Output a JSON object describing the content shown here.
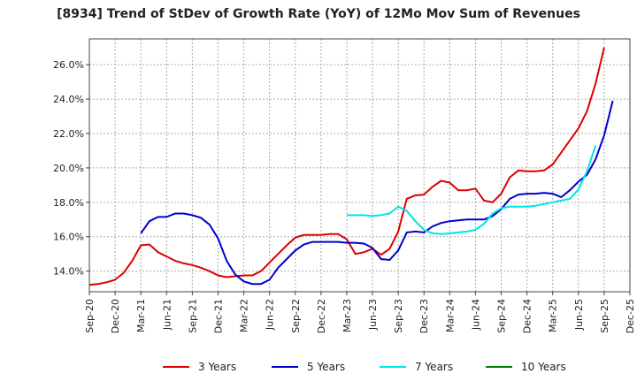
{
  "chart_data": {
    "type": "line",
    "title": "[8934]  Trend of StDev of Growth Rate (YoY) of 12Mo Mov Sum of Revenues",
    "xlabel": "",
    "ylabel": "",
    "ylim": [
      12.8,
      27.5
    ],
    "yticks": [
      14.0,
      16.0,
      18.0,
      20.0,
      22.0,
      24.0,
      26.0
    ],
    "ytick_labels": [
      "14.0%",
      "16.0%",
      "18.0%",
      "20.0%",
      "22.0%",
      "24.0%",
      "26.0%"
    ],
    "xtick_labels": [
      "Sep-20",
      "Dec-20",
      "Mar-21",
      "Jun-21",
      "Sep-21",
      "Dec-21",
      "Mar-22",
      "Jun-22",
      "Sep-22",
      "Dec-22",
      "Mar-23",
      "Jun-23",
      "Sep-23",
      "Dec-23",
      "Mar-24",
      "Jun-24",
      "Sep-24",
      "Dec-24",
      "Mar-25",
      "Jun-25",
      "Sep-25",
      "Dec-25"
    ],
    "x_start": "Sep-20",
    "x_months_total": 63,
    "grid": true,
    "legend_position": "bottom",
    "series": [
      {
        "name": "3 Years",
        "color": "#dd0000",
        "start_month_index": 0,
        "values": [
          13.2,
          13.25,
          13.35,
          13.5,
          13.9,
          14.6,
          15.5,
          15.55,
          15.1,
          14.85,
          14.6,
          14.45,
          14.35,
          14.2,
          14.0,
          13.75,
          13.65,
          13.7,
          13.75,
          13.75,
          14.0,
          14.5,
          15.0,
          15.5,
          15.95,
          16.1,
          16.1,
          16.1,
          16.15,
          16.15,
          15.85,
          15.0,
          15.1,
          15.3,
          14.95,
          15.3,
          16.3,
          18.2,
          18.4,
          18.45,
          18.9,
          19.25,
          19.15,
          18.7,
          18.7,
          18.8,
          18.1,
          18.0,
          18.5,
          19.45,
          19.85,
          19.8,
          19.8,
          19.85,
          20.2,
          20.9,
          21.6,
          22.3,
          23.3,
          24.9,
          27.0
        ]
      },
      {
        "name": "5 Years",
        "color": "#0000cc",
        "start_month_index": 6,
        "values": [
          16.2,
          16.9,
          17.15,
          17.15,
          17.35,
          17.35,
          17.25,
          17.1,
          16.7,
          15.9,
          14.6,
          13.8,
          13.4,
          13.25,
          13.25,
          13.5,
          14.2,
          14.7,
          15.2,
          15.55,
          15.7,
          15.7,
          15.7,
          15.7,
          15.65,
          15.65,
          15.6,
          15.35,
          14.7,
          14.65,
          15.2,
          16.25,
          16.3,
          16.25,
          16.6,
          16.8,
          16.9,
          16.95,
          17.0,
          17.0,
          17.0,
          17.2,
          17.6,
          18.2,
          18.45,
          18.5,
          18.5,
          18.55,
          18.5,
          18.3,
          18.7,
          19.2,
          19.6,
          20.5,
          21.9,
          23.9
        ]
      },
      {
        "name": "7 Years",
        "color": "#00e5e5",
        "start_month_index": 30,
        "values": [
          17.25,
          17.25,
          17.25,
          17.2,
          17.25,
          17.35,
          17.75,
          17.5,
          16.9,
          16.4,
          16.2,
          16.15,
          16.2,
          16.25,
          16.3,
          16.4,
          16.75,
          17.35,
          17.65,
          17.75,
          17.75,
          17.75,
          17.8,
          17.9,
          18.0,
          18.1,
          18.2,
          18.75,
          19.8,
          21.3
        ]
      },
      {
        "name": "10 Years",
        "color": "#008000",
        "start_month_index": 0,
        "values": []
      }
    ]
  }
}
